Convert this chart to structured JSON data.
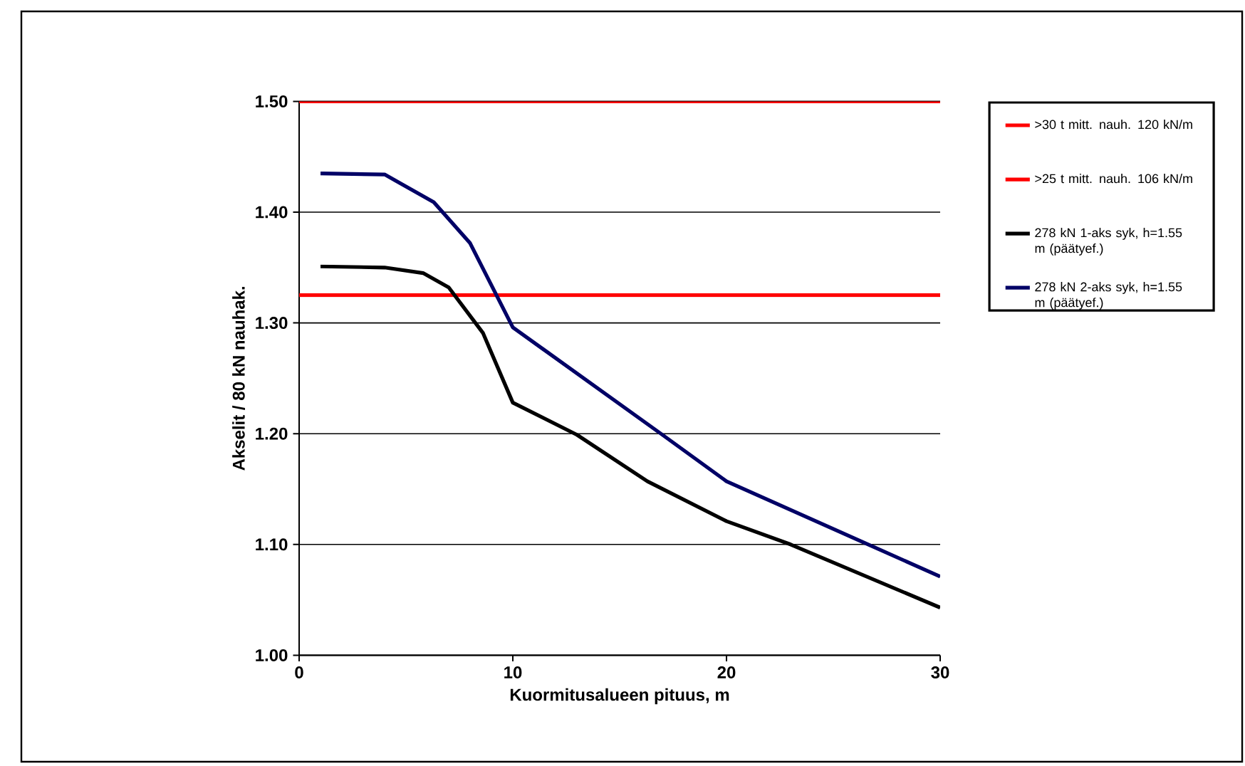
{
  "chart_data": {
    "type": "line",
    "xlabel": "Kuormitusalueen pituus, m",
    "ylabel": "Akselit / 80 kN nauhak.",
    "xlim": [
      0,
      30
    ],
    "xticks": [
      0,
      10,
      20,
      30
    ],
    "ylim": [
      1.0,
      1.5
    ],
    "yticks": [
      {
        "value": 1.0,
        "label": "1.00"
      },
      {
        "value": 1.1,
        "label": "1.10"
      },
      {
        "value": 1.2,
        "label": "1.20"
      },
      {
        "value": 1.3,
        "label": "1.30"
      },
      {
        "value": 1.4,
        "label": "1.40"
      },
      {
        "value": 1.5,
        "label": "1.50"
      }
    ],
    "grid": "y",
    "legend": "right",
    "marker": "none",
    "line_style": "solid",
    "series": [
      {
        "name": ">30 t mitt. nauh. 120 kN/m",
        "color": "#ff0000",
        "x": [
          0,
          30
        ],
        "values": [
          1.5,
          1.5
        ]
      },
      {
        "name": ">25 t mitt. nauh. 106 kN/m",
        "color": "#ff0000",
        "x": [
          0,
          30
        ],
        "values": [
          1.325,
          1.325
        ]
      },
      {
        "name": "278 kN 1-aks syk, h=1.55 m (päätyef.)",
        "color": "#000000",
        "x": [
          1,
          4,
          5.8,
          7,
          8.6,
          10,
          13,
          16.3,
          20,
          23,
          30
        ],
        "values": [
          1.351,
          1.35,
          1.345,
          1.332,
          1.291,
          1.228,
          1.199,
          1.157,
          1.121,
          1.1,
          1.043
        ]
      },
      {
        "name": "278 kN 2-aks syk, h=1.55 m (päätyef.)",
        "color": "#000066",
        "x": [
          1,
          4,
          6.3,
          8,
          10,
          17,
          20,
          30
        ],
        "values": [
          1.435,
          1.434,
          1.409,
          1.372,
          1.296,
          1.199,
          1.157,
          1.071
        ]
      }
    ]
  }
}
